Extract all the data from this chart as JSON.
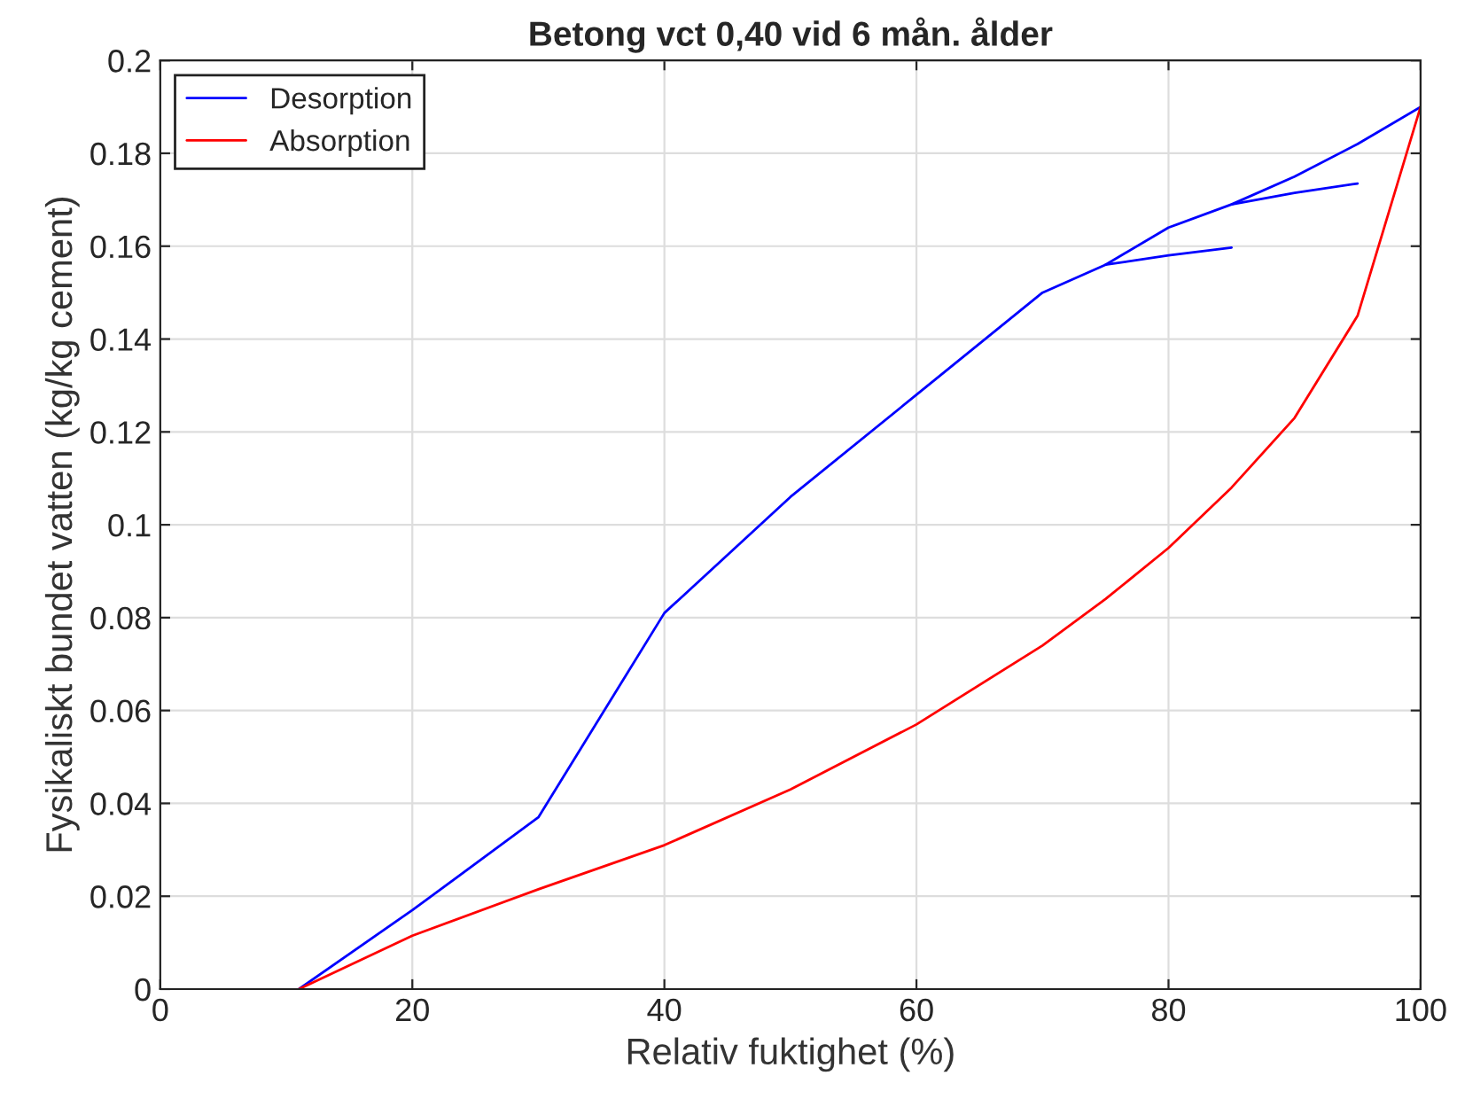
{
  "chart_data": {
    "type": "line",
    "title": "Betong vct 0,40 vid 6 mån. ålder",
    "xlabel": "Relativ fuktighet (%)",
    "ylabel": "Fysikaliskt bundet vatten (kg/kg cement)",
    "xlim": [
      0,
      100
    ],
    "xticks": [
      0,
      20,
      40,
      60,
      80,
      100
    ],
    "ylim": [
      0,
      0.2
    ],
    "yticks": [
      0,
      0.02,
      0.04,
      0.06,
      0.08,
      0.1,
      0.12,
      0.14,
      0.16,
      0.18,
      0.2
    ],
    "grid": true,
    "legend": "top left",
    "marker": "none",
    "line_style": "solid",
    "series": [
      {
        "name": "Desorption",
        "color": "#0000ff",
        "x": [
          11,
          20,
          30,
          40,
          50,
          60,
          70,
          75,
          80,
          85,
          90,
          95,
          100
        ],
        "values": [
          0,
          0.017,
          0.037,
          0.081,
          0.106,
          0.128,
          0.15,
          0.156,
          0.164,
          0.169,
          0.175,
          0.182,
          0.19
        ]
      },
      {
        "name": "Absorption",
        "color": "#ff0000",
        "x": [
          11,
          20,
          30,
          40,
          50,
          60,
          70,
          75,
          80,
          85,
          90,
          95,
          100
        ],
        "values": [
          0,
          0.0115,
          0.0215,
          0.031,
          0.043,
          0.057,
          0.074,
          0.084,
          0.095,
          0.108,
          0.123,
          0.145,
          0.19
        ]
      },
      {
        "color": "#0000ff",
        "x": [
          75,
          80,
          85
        ],
        "values": [
          0.156,
          0.158,
          0.1597
        ]
      },
      {
        "color": "#0000ff",
        "x": [
          85,
          90,
          95
        ],
        "values": [
          0.169,
          0.1715,
          0.1735
        ]
      }
    ]
  }
}
